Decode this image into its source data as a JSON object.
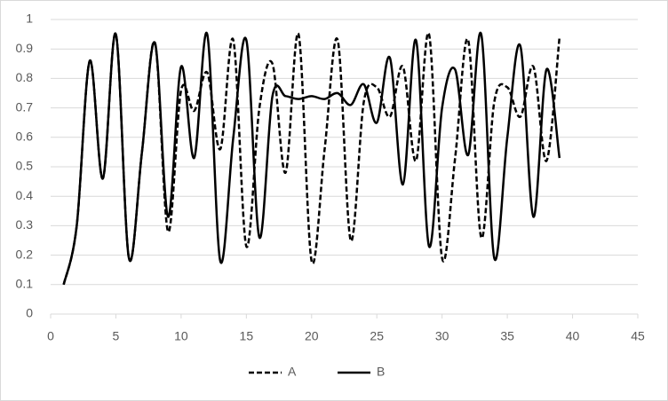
{
  "chart_data": {
    "type": "line",
    "x": [
      1,
      2,
      3,
      4,
      5,
      6,
      7,
      8,
      9,
      10,
      11,
      12,
      13,
      14,
      15,
      16,
      17,
      18,
      19,
      20,
      21,
      22,
      23,
      24,
      25,
      26,
      27,
      28,
      29,
      30,
      31,
      32,
      33,
      34,
      35,
      36,
      37,
      38,
      39
    ],
    "series": [
      {
        "name": "A",
        "color": "#000000",
        "dash": true,
        "values": [
          0.1,
          0.3,
          0.86,
          0.46,
          0.95,
          0.19,
          0.55,
          0.92,
          0.28,
          0.76,
          0.69,
          0.82,
          0.56,
          0.93,
          0.23,
          0.7,
          0.85,
          0.48,
          0.95,
          0.18,
          0.56,
          0.93,
          0.25,
          0.72,
          0.77,
          0.67,
          0.84,
          0.52,
          0.95,
          0.19,
          0.53,
          0.93,
          0.26,
          0.72,
          0.77,
          0.67,
          0.84,
          0.52,
          0.94
        ]
      },
      {
        "name": "B",
        "color": "#000000",
        "dash": false,
        "values": [
          0.1,
          0.3,
          0.86,
          0.46,
          0.95,
          0.19,
          0.55,
          0.92,
          0.33,
          0.84,
          0.53,
          0.95,
          0.18,
          0.6,
          0.93,
          0.26,
          0.74,
          0.74,
          0.73,
          0.74,
          0.73,
          0.75,
          0.71,
          0.78,
          0.65,
          0.87,
          0.44,
          0.93,
          0.23,
          0.7,
          0.83,
          0.54,
          0.95,
          0.19,
          0.6,
          0.91,
          0.33,
          0.83,
          0.53
        ]
      }
    ],
    "xlim": [
      0,
      45
    ],
    "xticks": [
      0,
      5,
      10,
      15,
      20,
      25,
      30,
      35,
      40,
      45
    ],
    "ylim": [
      0,
      1
    ],
    "yticks": [
      0,
      0.1,
      0.2,
      0.3,
      0.4,
      0.5,
      0.6,
      0.7,
      0.8,
      0.9,
      1
    ],
    "grid": true,
    "legend": "bottom"
  }
}
